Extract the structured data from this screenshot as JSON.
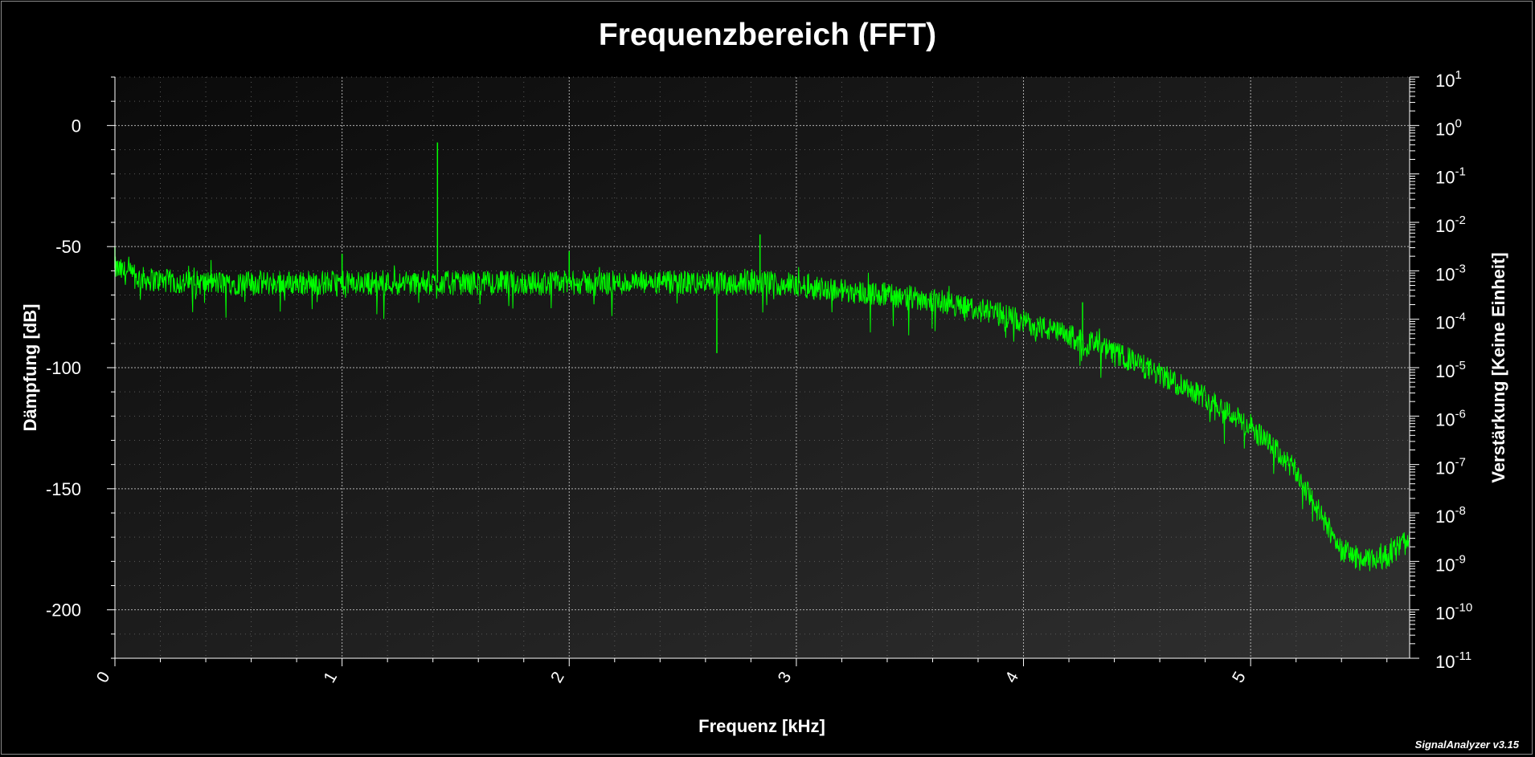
{
  "window": {
    "brand": "SignalAnalyzer v3.15"
  },
  "chart_data": {
    "type": "line",
    "title": "Frequenzbereich (FFT)",
    "xlabel": "Frequenz [kHz]",
    "ylabel": "Dämpfung [dB]",
    "y2label": "Verstärkung [Keine Einheit]",
    "xlim": [
      0,
      5.7
    ],
    "ylim": [
      -220,
      20
    ],
    "y2_scale": "log",
    "y2lim_exponents": [
      -11,
      1
    ],
    "xticks": [
      "0",
      "1",
      "2",
      "3",
      "4",
      "5"
    ],
    "yticks": [
      "0",
      "-50",
      "-100",
      "-150",
      "-200"
    ],
    "y2ticks": [
      {
        "base": "10",
        "exp": "1"
      },
      {
        "base": "10",
        "exp": "0"
      },
      {
        "base": "10",
        "exp": "-1"
      },
      {
        "base": "10",
        "exp": "-2"
      },
      {
        "base": "10",
        "exp": "-3"
      },
      {
        "base": "10",
        "exp": "-4"
      },
      {
        "base": "10",
        "exp": "-5"
      },
      {
        "base": "10",
        "exp": "-6"
      },
      {
        "base": "10",
        "exp": "-7"
      },
      {
        "base": "10",
        "exp": "-8"
      },
      {
        "base": "10",
        "exp": "-9"
      },
      {
        "base": "10",
        "exp": "-10"
      },
      {
        "base": "10",
        "exp": "-11"
      }
    ],
    "grid": true,
    "line_color": "#00ff00",
    "series": [
      {
        "x": [
          0,
          0.1,
          0.2,
          0.3,
          0.4,
          0.5,
          0.6,
          0.7,
          0.8,
          0.9,
          1.0,
          1.1,
          1.2,
          1.3,
          1.4,
          1.5,
          1.6,
          1.7,
          1.8,
          1.9,
          2.0,
          2.1,
          2.2,
          2.3,
          2.4,
          2.5,
          2.6,
          2.7,
          2.8,
          2.9,
          3.0,
          3.1,
          3.2,
          3.3,
          3.4,
          3.5,
          3.6,
          3.7,
          3.8,
          3.9,
          4.0,
          4.1,
          4.2,
          4.3,
          4.4,
          4.5,
          4.6,
          4.7,
          4.8,
          4.9,
          5.0,
          5.1,
          5.2,
          5.3,
          5.4,
          5.5,
          5.6,
          5.7
        ],
        "y": [
          -59,
          -63,
          -64,
          -65,
          -65,
          -65,
          -65,
          -65,
          -65,
          -65,
          -65,
          -65,
          -65,
          -65,
          -65,
          -65,
          -65,
          -65,
          -65,
          -65,
          -65,
          -65,
          -65,
          -65,
          -65,
          -65,
          -65,
          -65,
          -65,
          -65,
          -66,
          -67,
          -68,
          -69,
          -70,
          -71,
          -72,
          -74,
          -76,
          -78,
          -81,
          -84,
          -87,
          -90,
          -94,
          -98,
          -103,
          -107,
          -112,
          -118,
          -125,
          -133,
          -143,
          -160,
          -175,
          -180,
          -178,
          -170
        ],
        "noise_db": 5
      }
    ],
    "spikes": [
      {
        "x": 0.0,
        "y": -50
      },
      {
        "x": 1.0,
        "y": -53
      },
      {
        "x": 1.42,
        "y": -7
      },
      {
        "x": 2.0,
        "y": -52
      },
      {
        "x": 2.65,
        "y": -94
      },
      {
        "x": 2.84,
        "y": -45
      },
      {
        "x": 4.26,
        "y": -73
      }
    ]
  }
}
